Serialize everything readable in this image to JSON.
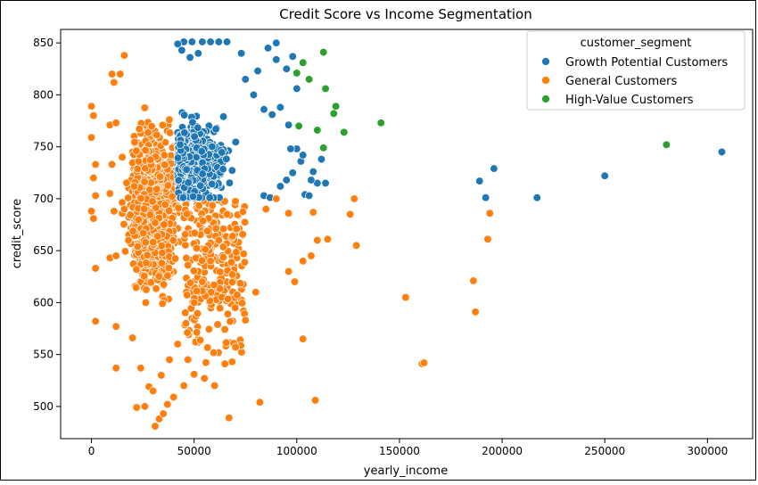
{
  "chart_data": {
    "type": "scatter",
    "title": "Credit Score vs Income Segmentation",
    "xlabel": "yearly_income",
    "ylabel": "credit_score",
    "xlim": [
      -15000,
      322000
    ],
    "ylim": [
      469,
      863
    ],
    "xticks": [
      0,
      50000,
      100000,
      150000,
      200000,
      250000,
      300000
    ],
    "yticks": [
      500,
      550,
      600,
      650,
      700,
      750,
      800,
      850
    ],
    "grid": false,
    "legend": {
      "title": "customer_segment",
      "placement": "top-right"
    },
    "series": [
      {
        "name": "Growth Potential Customers",
        "color": "#1f77b4",
        "points": [
          [
            189000,
            717
          ],
          [
            192000,
            701
          ],
          [
            196000,
            729
          ],
          [
            217000,
            701
          ],
          [
            250000,
            722
          ],
          [
            307000,
            745
          ],
          [
            84000,
            703
          ],
          [
            87000,
            701
          ],
          [
            92000,
            712
          ],
          [
            95000,
            718
          ],
          [
            98000,
            725
          ],
          [
            100000,
            748
          ],
          [
            102000,
            736
          ],
          [
            104000,
            704
          ],
          [
            106000,
            703
          ],
          [
            108000,
            726
          ],
          [
            110000,
            715
          ],
          [
            112000,
            738
          ],
          [
            114000,
            715
          ],
          [
            96000,
            771
          ],
          [
            100000,
            806
          ],
          [
            95000,
            825
          ],
          [
            90000,
            834
          ],
          [
            98000,
            837
          ],
          [
            86000,
            845
          ],
          [
            90000,
            850
          ],
          [
            73000,
            840
          ],
          [
            84000,
            786
          ],
          [
            79000,
            800
          ],
          [
            81000,
            823
          ],
          [
            75000,
            815
          ],
          [
            88000,
            781
          ],
          [
            92000,
            788
          ],
          [
            97000,
            748
          ],
          [
            103000,
            742
          ],
          [
            107000,
            718
          ],
          [
            66000,
            851
          ],
          [
            62000,
            851
          ],
          [
            58000,
            851
          ],
          [
            54000,
            851
          ],
          [
            49000,
            851
          ],
          [
            45000,
            851
          ],
          [
            42000,
            849
          ],
          [
            44000,
            843
          ],
          [
            48000,
            836
          ],
          [
            52000,
            840
          ]
        ]
      },
      {
        "name": "General Customers",
        "color": "#ff7f0e",
        "points": [
          [
            0,
            789
          ],
          [
            1000,
            780
          ],
          [
            0,
            759
          ],
          [
            2000,
            733
          ],
          [
            1000,
            720
          ],
          [
            2000,
            703
          ],
          [
            0,
            688
          ],
          [
            1000,
            681
          ],
          [
            2000,
            633
          ],
          [
            2000,
            582
          ],
          [
            9000,
            771
          ],
          [
            10000,
            820
          ],
          [
            11000,
            812
          ],
          [
            12000,
            773
          ],
          [
            10000,
            733
          ],
          [
            9000,
            705
          ],
          [
            11000,
            688
          ],
          [
            9000,
            643
          ],
          [
            12000,
            645
          ],
          [
            12000,
            577
          ],
          [
            12000,
            537
          ],
          [
            14000,
            820
          ],
          [
            16000,
            838
          ],
          [
            15000,
            740
          ],
          [
            16000,
            690
          ],
          [
            18000,
            660
          ],
          [
            20000,
            566
          ],
          [
            22000,
            499
          ],
          [
            24000,
            537
          ],
          [
            26000,
            500
          ],
          [
            28000,
            519
          ],
          [
            31000,
            481
          ],
          [
            33000,
            488
          ],
          [
            35000,
            493
          ],
          [
            37000,
            502
          ],
          [
            67000,
            489
          ],
          [
            82000,
            504
          ],
          [
            109000,
            506
          ],
          [
            103000,
            565
          ],
          [
            110000,
            660
          ],
          [
            115000,
            661
          ],
          [
            126000,
            685
          ],
          [
            128000,
            700
          ],
          [
            129000,
            655
          ],
          [
            153000,
            605
          ],
          [
            161000,
            541
          ],
          [
            162000,
            542
          ],
          [
            186000,
            621
          ],
          [
            187000,
            591
          ],
          [
            193000,
            661
          ],
          [
            194000,
            686
          ],
          [
            96000,
            630
          ],
          [
            99000,
            620
          ],
          [
            103000,
            640
          ],
          [
            107000,
            645
          ],
          [
            108000,
            687
          ],
          [
            96000,
            686
          ],
          [
            90000,
            700
          ],
          [
            85000,
            690
          ],
          [
            80000,
            610
          ],
          [
            75000,
            583
          ],
          [
            70000,
            595
          ],
          [
            65000,
            541
          ],
          [
            60000,
            520
          ],
          [
            55000,
            527
          ],
          [
            50000,
            531
          ],
          [
            45000,
            520
          ],
          [
            40000,
            509
          ],
          [
            62000,
            660
          ],
          [
            58000,
            640
          ],
          [
            54000,
            620
          ],
          [
            50000,
            600
          ],
          [
            46000,
            580
          ],
          [
            42000,
            560
          ],
          [
            38000,
            545
          ],
          [
            34000,
            530
          ],
          [
            30000,
            515
          ]
        ]
      },
      {
        "name": "High-Value Customers",
        "color": "#2ca02c",
        "points": [
          [
            113000,
            841
          ],
          [
            103000,
            831
          ],
          [
            100000,
            821
          ],
          [
            106000,
            815
          ],
          [
            114000,
            806
          ],
          [
            119000,
            789
          ],
          [
            118000,
            782
          ],
          [
            141000,
            773
          ],
          [
            101000,
            770
          ],
          [
            110000,
            766
          ],
          [
            123000,
            764
          ],
          [
            113000,
            749
          ],
          [
            280000,
            752
          ]
        ]
      }
    ]
  }
}
